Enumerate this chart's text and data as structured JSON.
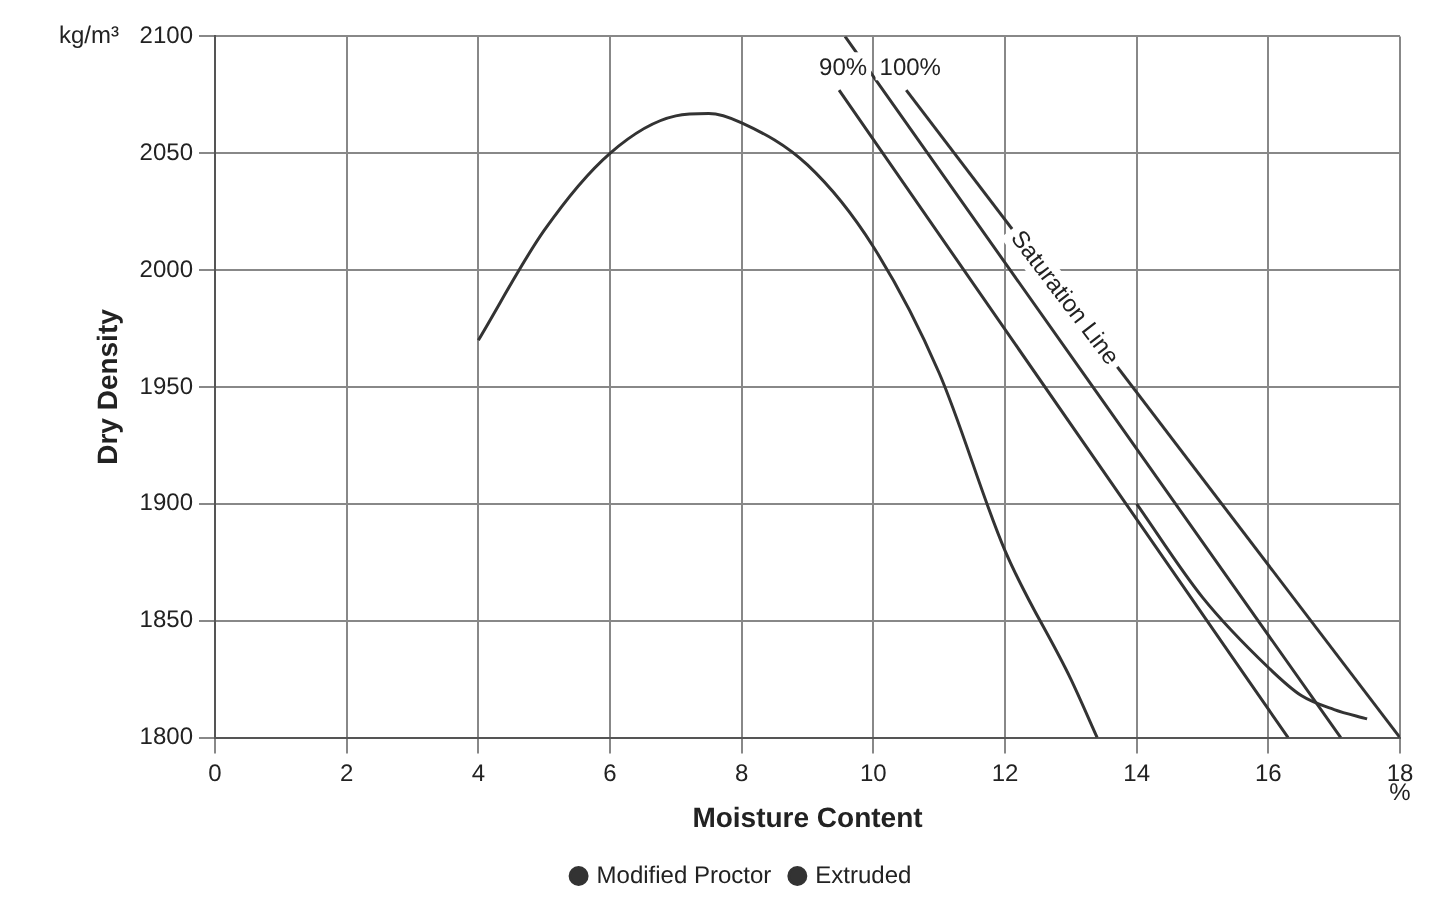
{
  "chart_data": {
    "type": "line",
    "xlabel": "Moisture Content",
    "ylabel": "Dry Density",
    "xlim": [
      0,
      18
    ],
    "xticks": [
      0,
      2,
      4,
      6,
      8,
      10,
      12,
      14,
      16,
      18
    ],
    "ylim": [
      1800,
      2100
    ],
    "yticks": [
      1800,
      1850,
      1900,
      1950,
      2000,
      2050,
      2100
    ],
    "grid": true,
    "legend": "bottom",
    "marker": "none",
    "line_style": "solid",
    "series": [
      {
        "name": "Modified Proctor",
        "color": "#333333",
        "x": [
          4,
          5,
          6,
          7,
          7.5,
          8,
          9,
          10,
          11,
          12,
          13,
          13.4
        ],
        "values": [
          1970,
          2017,
          2050,
          2066,
          2067,
          2063,
          2045,
          2010,
          1956,
          1880,
          1825,
          1800
        ]
      },
      {
        "name": "Extruded",
        "color": "#333333",
        "x": [
          14,
          15,
          16,
          16.5,
          17,
          17.5
        ],
        "values": [
          1900,
          1860,
          1830,
          1818,
          1812,
          1808
        ]
      },
      {
        "color": "#333333",
        "x": [
          9.48,
          16.3
        ],
        "values": [
          2077,
          1800
        ]
      },
      {
        "color": "#333333",
        "x": [
          9.57,
          17.1
        ],
        "values": [
          2100,
          1800
        ]
      },
      {
        "color": "#333333",
        "x": [
          10.5,
          18
        ],
        "values": [
          2077,
          1800
        ]
      }
    ],
    "annotations": [
      "kg/m³",
      "%",
      "90%",
      "100%",
      {
        "text": "Saturation Line",
        "x": 12.9,
        "y": 1988
      }
    ]
  }
}
